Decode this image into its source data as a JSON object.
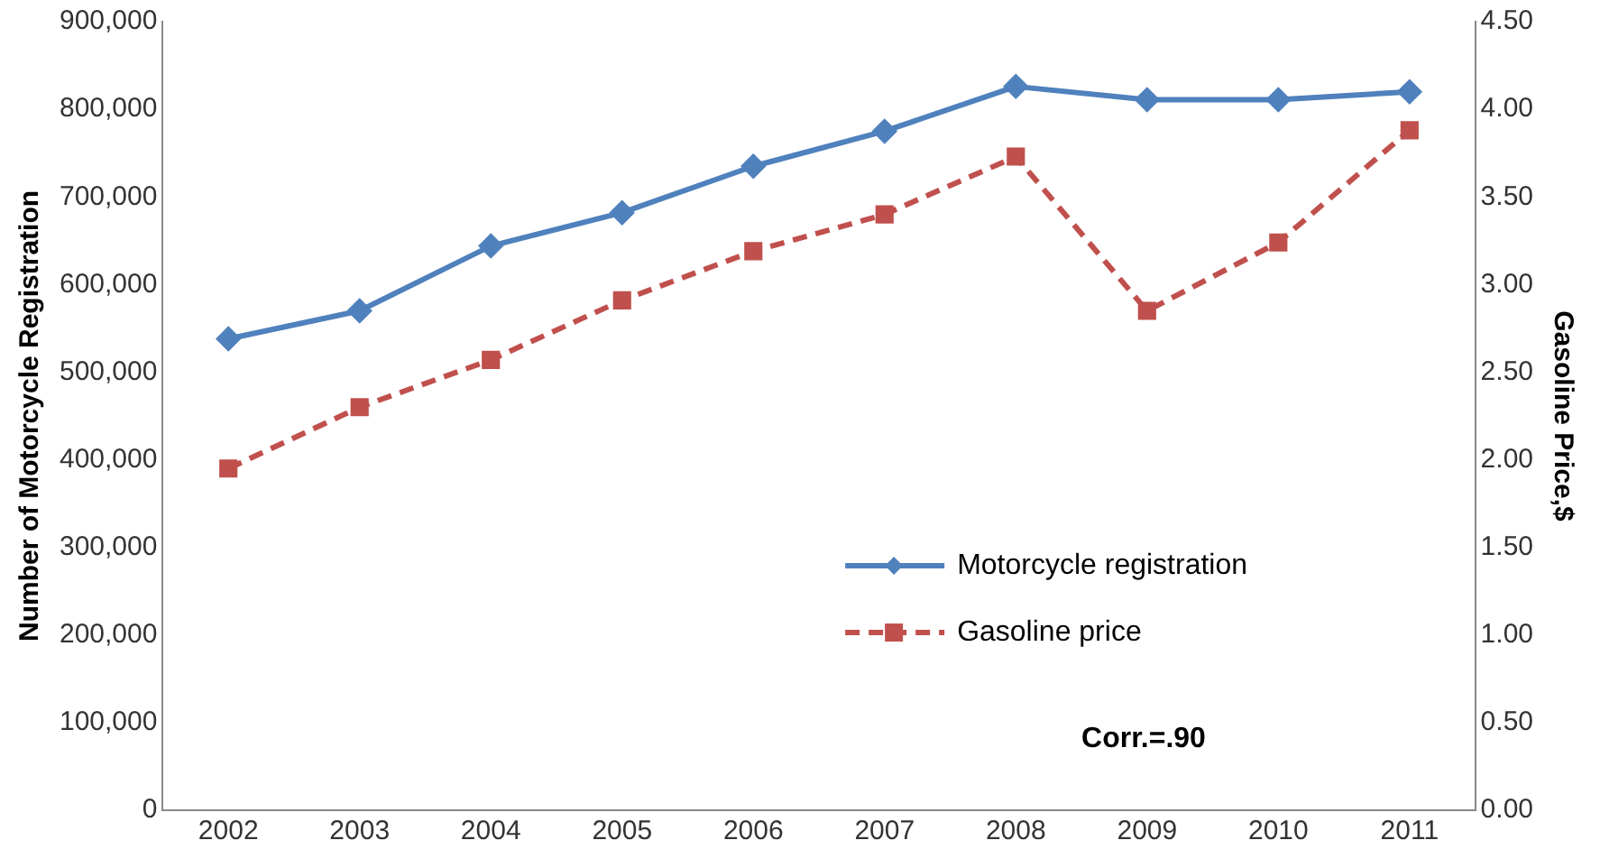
{
  "chart_data": {
    "type": "line",
    "xlabel": null,
    "ylabel": "Number of Motorcycle Registration",
    "y2label": "Gasoline Price,$",
    "categories": [
      "2002",
      "2003",
      "2004",
      "2005",
      "2006",
      "2007",
      "2008",
      "2009",
      "2010",
      "2011"
    ],
    "series": [
      {
        "name": "Motorcycle registration",
        "color": "#4f81bd",
        "marker": "diamond",
        "line_style": "solid",
        "values": [
          538000,
          570000,
          644000,
          682000,
          735000,
          775000,
          826000,
          811000,
          811000,
          820000
        ]
      },
      {
        "name": "Gasoline price",
        "color": "#c0504d",
        "marker": "square",
        "line_style": "dashed",
        "axis": "y2",
        "values": [
          1.95,
          2.3,
          2.57,
          2.91,
          3.19,
          3.4,
          3.73,
          2.85,
          3.24,
          3.88
        ]
      }
    ],
    "ylim": [
      0,
      900000
    ],
    "yticks": [
      0,
      {
        "value": 100000,
        "label": "100,000"
      },
      {
        "value": 200000,
        "label": "200,000"
      },
      {
        "value": 300000,
        "label": "300,000"
      },
      {
        "value": 400000,
        "label": "400,000"
      },
      {
        "value": 500000,
        "label": "500,000"
      },
      {
        "value": 600000,
        "label": "600,000"
      },
      {
        "value": 700000,
        "label": "700,000"
      },
      {
        "value": 800000,
        "label": "800,000"
      },
      {
        "value": 900000,
        "label": "900,000"
      }
    ],
    "y2lim": [
      0,
      4.5
    ],
    "y2ticks": [
      {
        "value": 0,
        "label": "0.00"
      },
      {
        "value": 0.5,
        "label": "0.50"
      },
      {
        "value": 1,
        "label": "1.00"
      },
      {
        "value": 1.5,
        "label": "1.50"
      },
      {
        "value": 2,
        "label": "2.00"
      },
      {
        "value": 2.5,
        "label": "2.50"
      },
      {
        "value": 3,
        "label": "3.00"
      },
      {
        "value": 3.5,
        "label": "3.50"
      },
      {
        "value": 4,
        "label": "4.00"
      },
      {
        "value": 4.5,
        "label": "4.50"
      }
    ],
    "grid": false,
    "legend": "bottom right",
    "annotations": [
      "Corr.=.90"
    ]
  }
}
